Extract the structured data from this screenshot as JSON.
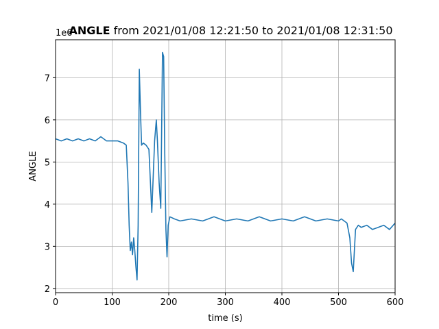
{
  "chart_data": {
    "type": "line",
    "title_bold": "ANGLE",
    "title_rest": " from 2021/01/08 12:21:50 to 2021/01/08 12:31:50",
    "xlabel": "time (s)",
    "ylabel": "ANGLE",
    "y_offset_label": "1e6",
    "xlim": [
      0,
      600
    ],
    "ylim": [
      1.9,
      7.9
    ],
    "xticks": [
      0,
      100,
      200,
      300,
      400,
      500,
      600
    ],
    "yticks": [
      2,
      3,
      4,
      5,
      6,
      7
    ],
    "grid": true,
    "series_color": "#1f77b4",
    "series": [
      {
        "x": [
          0,
          10,
          20,
          30,
          40,
          50,
          60,
          70,
          80,
          90,
          100,
          110,
          120,
          125,
          128,
          130,
          132,
          134,
          136,
          138,
          140,
          142,
          144,
          146,
          148,
          150,
          152,
          155,
          160,
          165,
          170,
          175,
          178,
          180,
          183,
          186,
          189,
          191,
          193,
          195,
          197,
          199,
          202,
          210,
          220,
          240,
          260,
          280,
          300,
          320,
          340,
          360,
          380,
          400,
          420,
          440,
          460,
          480,
          500,
          505,
          510,
          515,
          520,
          523,
          526,
          530,
          535,
          540,
          550,
          560,
          570,
          580,
          590,
          600
        ],
        "y": [
          5.55,
          5.5,
          5.55,
          5.5,
          5.55,
          5.5,
          5.55,
          5.5,
          5.6,
          5.5,
          5.5,
          5.5,
          5.45,
          5.4,
          4.5,
          3.5,
          2.9,
          3.1,
          2.8,
          3.2,
          2.9,
          2.5,
          2.2,
          3.5,
          7.2,
          6.2,
          5.4,
          5.45,
          5.4,
          5.3,
          3.8,
          5.5,
          6.0,
          5.5,
          4.5,
          3.9,
          7.6,
          7.5,
          5.2,
          3.4,
          2.75,
          3.5,
          3.7,
          3.65,
          3.6,
          3.65,
          3.6,
          3.7,
          3.6,
          3.65,
          3.6,
          3.7,
          3.6,
          3.65,
          3.6,
          3.7,
          3.6,
          3.65,
          3.6,
          3.65,
          3.6,
          3.55,
          3.2,
          2.6,
          2.4,
          3.4,
          3.5,
          3.45,
          3.5,
          3.4,
          3.45,
          3.5,
          3.4,
          3.55
        ]
      }
    ]
  }
}
